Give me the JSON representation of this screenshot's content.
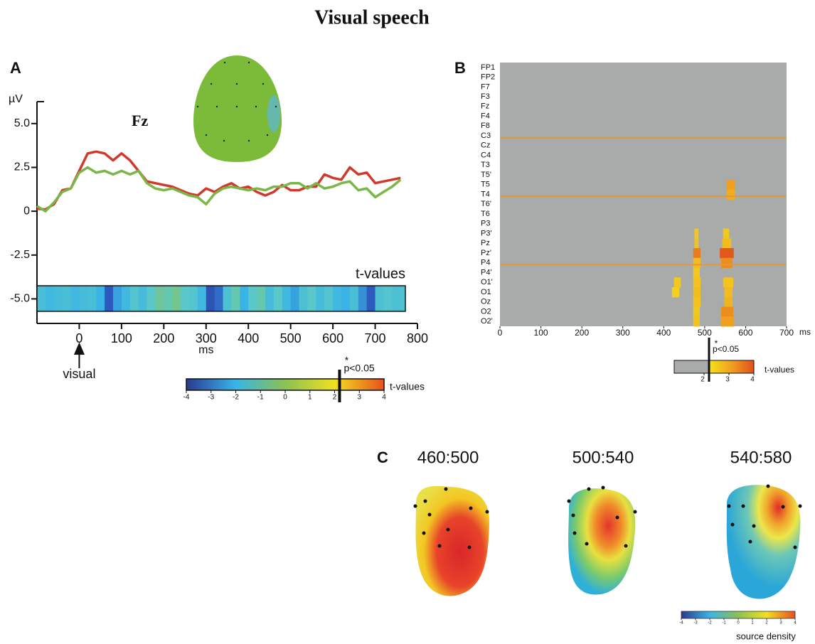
{
  "title": "Visual speech",
  "chart_data": [
    {
      "type": "line",
      "panel_label": "A",
      "y_label": "µV",
      "x_label": "ms",
      "electrode": "Fz",
      "event": {
        "text": "visual",
        "x": 0
      },
      "x": [
        -100,
        -80,
        -60,
        -40,
        -20,
        0,
        20,
        40,
        60,
        80,
        100,
        120,
        140,
        160,
        180,
        200,
        220,
        240,
        260,
        280,
        300,
        320,
        340,
        360,
        380,
        400,
        420,
        440,
        460,
        480,
        500,
        520,
        540,
        560,
        580,
        600,
        620,
        640,
        660,
        680,
        700,
        720,
        740,
        760
      ],
      "series": [
        {
          "color": "#d0392b",
          "values": [
            0.15,
            0.1,
            0.4,
            1.2,
            1.3,
            2.3,
            3.3,
            3.4,
            3.3,
            2.9,
            3.3,
            2.9,
            2.3,
            1.7,
            1.6,
            1.5,
            1.4,
            1.2,
            1.0,
            0.9,
            1.3,
            1.1,
            1.4,
            1.6,
            1.3,
            1.4,
            1.1,
            0.9,
            1.1,
            1.5,
            1.2,
            1.2,
            1.4,
            1.4,
            2.1,
            1.9,
            1.8,
            2.5,
            2.1,
            2.2,
            1.6,
            1.7,
            1.8,
            1.9
          ]
        },
        {
          "color": "#7ab648",
          "values": [
            0.3,
            0.0,
            0.5,
            1.1,
            1.3,
            2.2,
            2.5,
            2.2,
            2.3,
            2.1,
            2.3,
            2.1,
            2.3,
            1.6,
            1.3,
            1.2,
            1.3,
            1.1,
            0.9,
            0.8,
            0.4,
            1.0,
            1.3,
            1.4,
            1.3,
            1.2,
            1.3,
            1.2,
            1.4,
            1.4,
            1.6,
            1.6,
            1.3,
            1.6,
            1.3,
            1.4,
            1.6,
            1.7,
            1.2,
            1.3,
            0.8,
            1.1,
            1.4,
            1.8
          ]
        }
      ],
      "xlim": [
        -100,
        800
      ],
      "xticks": [
        0,
        100,
        200,
        300,
        400,
        500,
        600,
        700,
        800
      ],
      "ylim": [
        -6.4,
        6.25
      ],
      "yticks": [
        {
          "value": 5,
          "label": "5.0"
        },
        2.5,
        0,
        -2.5,
        {
          "value": -5,
          "label": "-5.0"
        }
      ],
      "t_strip": {
        "label": "t-values",
        "values": [
          -1.5,
          -1.8,
          -1.6,
          -1.5,
          -1.8,
          -1.6,
          -1.5,
          -2.0,
          -3.0,
          -2.2,
          -1.8,
          -1.2,
          -1.6,
          -1.0,
          -0.6,
          -0.8,
          -0.5,
          -1.0,
          -1.2,
          -1.8,
          -3.2,
          -2.8,
          -1.4,
          -0.8,
          -2.0,
          -1.0,
          -0.8,
          -1.6,
          -1.0,
          -1.8,
          -2.2,
          -1.4,
          -1.0,
          -1.6,
          -1.2,
          -1.8,
          -2.0,
          -1.5,
          -2.4,
          -3.0,
          -1.4,
          -1.2,
          -1.4,
          -1.3
        ]
      },
      "colorbar": {
        "lim": [
          -4,
          4
        ],
        "ticks": [
          -4,
          -3,
          -2,
          -1,
          0,
          1,
          2,
          3,
          4
        ],
        "label": "t-values",
        "significance": "*",
        "threshold_label": "p<0.05",
        "threshold": 2.2
      }
    },
    {
      "type": "heatmap",
      "panel_label": "B",
      "x_label": "ms",
      "background": "#a9abaa",
      "channels": [
        "FP1",
        "FP2",
        "F7",
        "F3",
        "Fz",
        "F4",
        "F8",
        "C3",
        "Cz",
        "C4",
        "T3",
        "T5'",
        "T5",
        "T4",
        "T6'",
        "T6",
        "P3",
        "P3'",
        "Pz",
        "Pz'",
        "P4",
        "P4'",
        "O1'",
        "O1",
        "Oz",
        "O2",
        "O2'"
      ],
      "xlim": [
        0,
        700
      ],
      "xticks": [
        0,
        100,
        200,
        300,
        400,
        500,
        600,
        700
      ],
      "cells": [
        {
          "channel": "T5",
          "start": 554,
          "end": 574,
          "t": 3.0
        },
        {
          "channel": "T4",
          "start": 554,
          "end": 574,
          "t": 2.8
        },
        {
          "channel": "P3'",
          "start": 475,
          "end": 485,
          "t": 2.4
        },
        {
          "channel": "Pz",
          "start": 475,
          "end": 485,
          "t": 2.5
        },
        {
          "channel": "Pz'",
          "start": 472,
          "end": 490,
          "t": 3.4
        },
        {
          "channel": "P4",
          "start": 472,
          "end": 490,
          "t": 2.6
        },
        {
          "channel": "P3'",
          "start": 545,
          "end": 560,
          "t": 2.4
        },
        {
          "channel": "Pz",
          "start": 543,
          "end": 565,
          "t": 2.6
        },
        {
          "channel": "Pz'",
          "start": 537,
          "end": 571,
          "t": 3.8
        },
        {
          "channel": "P4",
          "start": 540,
          "end": 568,
          "t": 3.2
        },
        {
          "channel": "P4'",
          "start": 472,
          "end": 488,
          "t": 2.4
        },
        {
          "channel": "O1'",
          "start": 425,
          "end": 442,
          "t": 2.4
        },
        {
          "channel": "O1'",
          "start": 472,
          "end": 490,
          "t": 2.5
        },
        {
          "channel": "O1'",
          "start": 545,
          "end": 570,
          "t": 2.5
        },
        {
          "channel": "O1",
          "start": 420,
          "end": 438,
          "t": 2.3
        },
        {
          "channel": "O1",
          "start": 472,
          "end": 490,
          "t": 2.6
        },
        {
          "channel": "O1",
          "start": 548,
          "end": 568,
          "t": 2.6
        },
        {
          "channel": "Oz",
          "start": 472,
          "end": 490,
          "t": 2.5
        },
        {
          "channel": "Oz",
          "start": 548,
          "end": 568,
          "t": 2.7
        },
        {
          "channel": "O2",
          "start": 472,
          "end": 488,
          "t": 2.4
        },
        {
          "channel": "O2",
          "start": 540,
          "end": 570,
          "t": 3.2
        },
        {
          "channel": "O2'",
          "start": 472,
          "end": 488,
          "t": 2.5
        },
        {
          "channel": "O2'",
          "start": 540,
          "end": 572,
          "t": 3.0
        }
      ],
      "colorbar": {
        "lim": [
          0.8,
          4
        ],
        "ticks": [
          2,
          3,
          4
        ],
        "label": "t-values",
        "significance": "*",
        "threshold_label": "p<0.05",
        "threshold": 2.2
      }
    }
  ],
  "panel_c": {
    "panel_label": "C",
    "maps": [
      {
        "title": "460:500"
      },
      {
        "title": "500:540"
      },
      {
        "title": "540:580"
      }
    ],
    "colorbar": {
      "lim": [
        -4,
        4
      ],
      "ticks": [
        -4,
        -3,
        -2,
        -1,
        0,
        1,
        2,
        3,
        4
      ],
      "label": "source density"
    }
  }
}
